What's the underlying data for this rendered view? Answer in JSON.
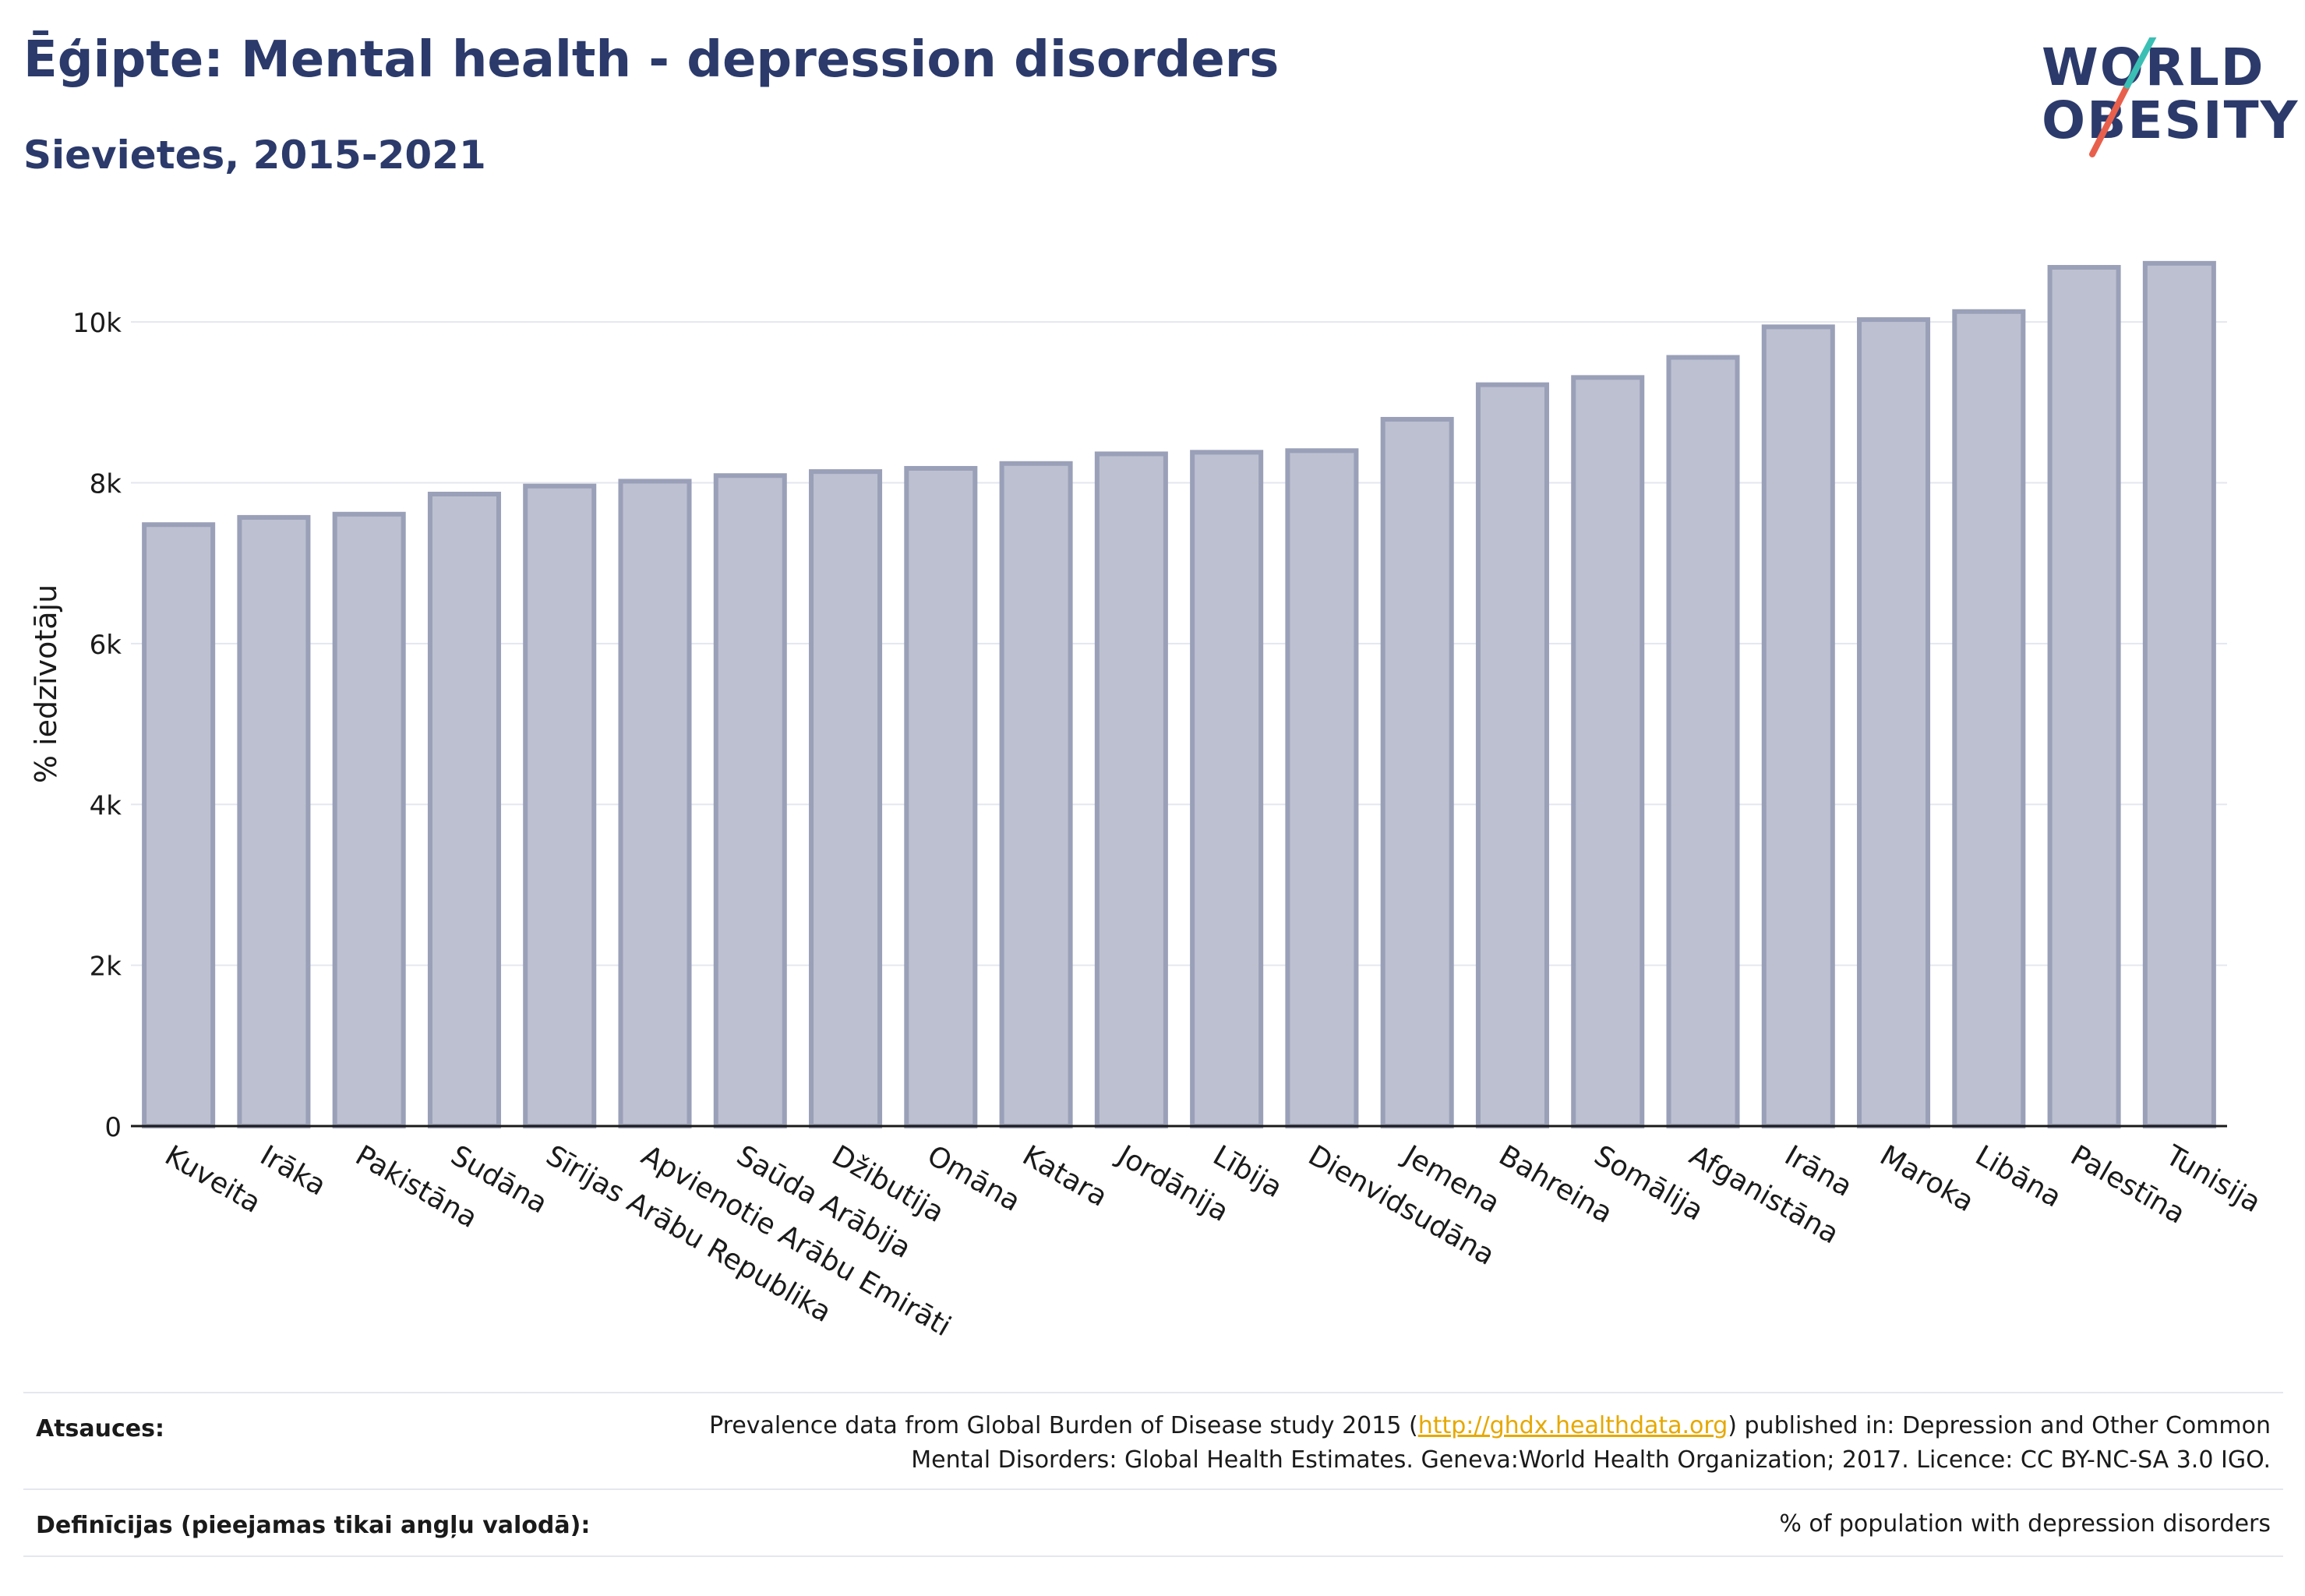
{
  "header": {
    "title": "Ēģipte: Mental health - depression disorders",
    "subtitle": "Sievietes, 2015-2021"
  },
  "logo": {
    "line1": "WORLD",
    "line2": "OBESITY",
    "accent_teal": "#3bbfb5",
    "accent_red": "#e8604c"
  },
  "colors": {
    "text_dark": "#2b3a6b",
    "bar_fill": "#bcc0d0",
    "bar_stroke": "#9aa0b8",
    "grid": "#e5e7ef",
    "link": "#e6a800"
  },
  "chart_data": {
    "type": "bar",
    "title": "Ēģipte: Mental health - depression disorders",
    "subtitle": "Sievietes, 2015-2021",
    "ylabel": "% iedzīvotāju",
    "xlabel": "",
    "ylim": [
      0,
      11000
    ],
    "yticks": [
      0,
      2000,
      4000,
      6000,
      8000,
      10000
    ],
    "ytick_labels": [
      "0",
      "2k",
      "4k",
      "6k",
      "8k",
      "10k"
    ],
    "grid": true,
    "categories": [
      "Kuveita",
      "Irāka",
      "Pakistāna",
      "Sudāna",
      "Sīrijas Arābu Republika",
      "Apvienotie Arābu Emirāti",
      "Saūda Arābija",
      "Džibutija",
      "Omāna",
      "Katara",
      "Jordānija",
      "Lībija",
      "Dienvidsudāna",
      "Jemena",
      "Bahreina",
      "Somālija",
      "Afganistāna",
      "Irāna",
      "Maroka",
      "Libāna",
      "Palestīna",
      "Tunisija"
    ],
    "values": [
      7480,
      7570,
      7610,
      7860,
      7960,
      8020,
      8090,
      8140,
      8180,
      8240,
      8360,
      8380,
      8400,
      8790,
      9220,
      9310,
      9560,
      9940,
      10030,
      10130,
      10680,
      10730
    ]
  },
  "footer": {
    "sources_label": "Atsauces:",
    "sources_text_1": "Prevalence data from Global Burden of Disease study 2015 (",
    "sources_link": "http://ghdx.healthdata.org",
    "sources_text_2": ") published in: Depression and Other Common",
    "sources_text_3": "Mental Disorders: Global Health Estimates. Geneva:World Health Organization; 2017. Licence: CC BY-NC-SA 3.0 IGO.",
    "definitions_label": "Definīcijas (pieejamas tikai angļu valodā):",
    "definitions_text": "% of population with depression disorders"
  }
}
